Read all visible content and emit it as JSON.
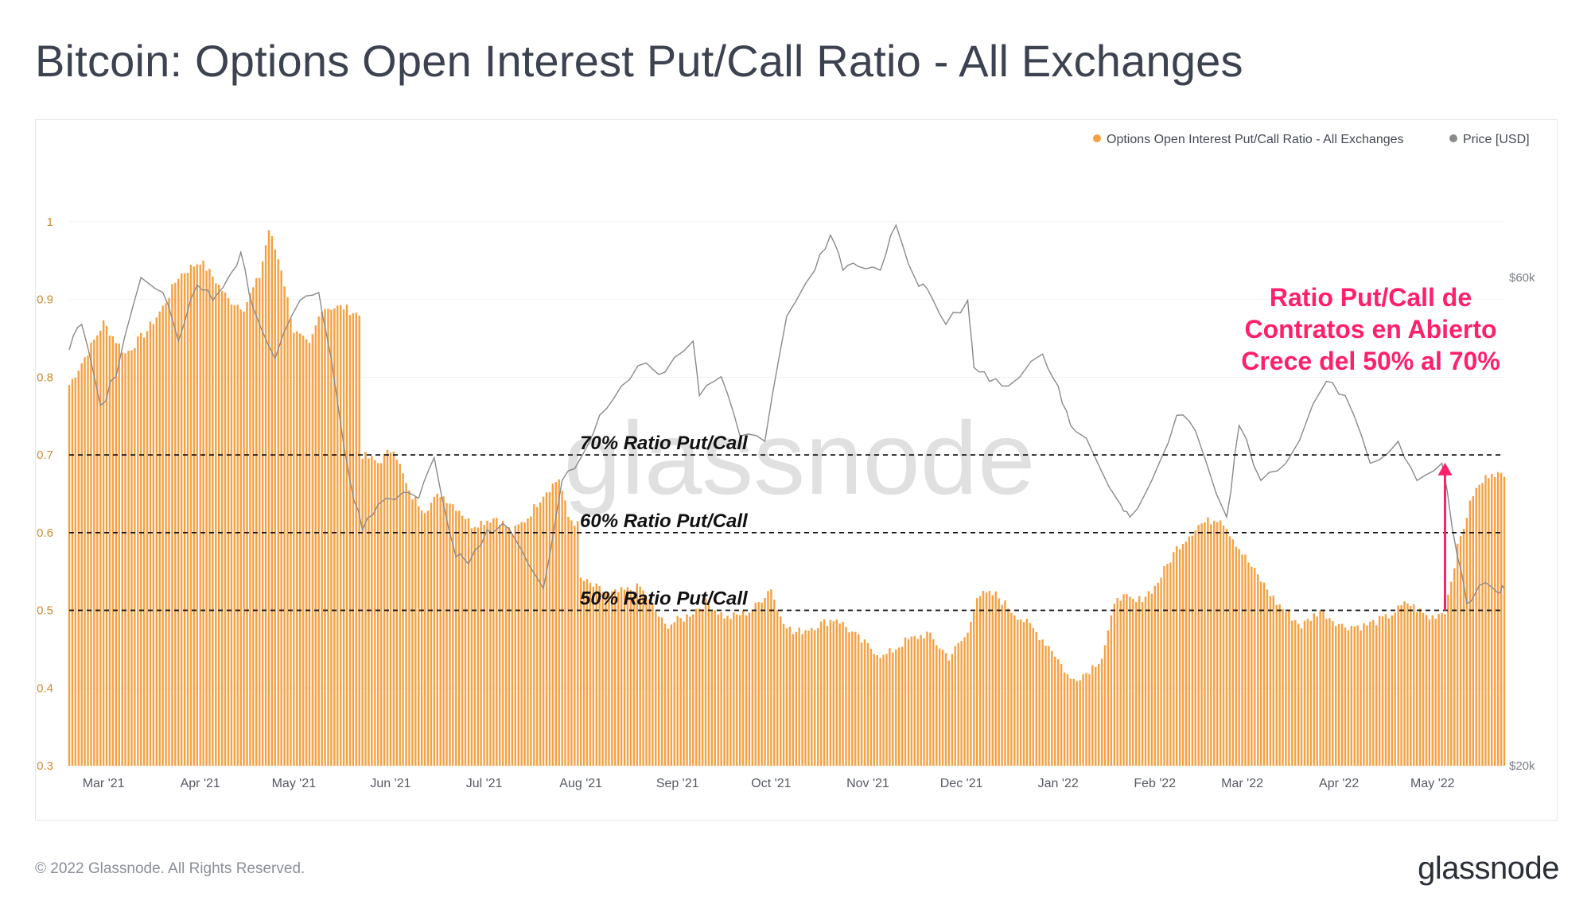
{
  "title": "Bitcoin: Options Open Interest Put/Call Ratio - All Exchanges",
  "footer": {
    "copyright": "© 2022 Glassnode. All Rights Reserved.",
    "logo": "glassnode"
  },
  "watermark": "glassnode",
  "colors": {
    "ratio": "#f5a142",
    "price": "#8a8a8a",
    "annotation": "#ff1f6b",
    "grid": "#eef0f3"
  },
  "chart_data": {
    "type": "bar",
    "legend": {
      "placement": "top-right",
      "entries": [
        {
          "name": "Options Open Interest Put/Call Ratio - All Exchanges",
          "color": "#f5a142"
        },
        {
          "name": "Price [USD]",
          "color": "#8a8a8a"
        }
      ]
    },
    "x_axis": {
      "range": [
        "2021-02-18",
        "2022-05-24"
      ],
      "tick_labels": [
        "Mar '21",
        "Apr '21",
        "May '21",
        "Jun '21",
        "Jul '21",
        "Aug '21",
        "Sep '21",
        "Oct '21",
        "Nov '21",
        "Dec '21",
        "Jan '22",
        "Feb '22",
        "Mar '22",
        "Apr '22",
        "May '22"
      ]
    },
    "y_left": {
      "range": [
        0.3,
        1.0
      ],
      "tick_labels": [
        "0.3",
        "0.4",
        "0.5",
        "0.6",
        "0.7",
        "0.8",
        "0.9",
        "1"
      ]
    },
    "y_right": {
      "scale": "log",
      "tick_labels": [
        "$20k",
        "$60k"
      ]
    },
    "grid": true,
    "ratio_series": {
      "name": "Options Open Interest Put/Call Ratio - All Exchanges",
      "resolution": "daily",
      "points": [
        [
          "2021-02-18",
          0.79
        ],
        [
          "2021-02-25",
          0.84
        ],
        [
          "2021-03-01",
          0.87
        ],
        [
          "2021-03-08",
          0.83
        ],
        [
          "2021-03-15",
          0.86
        ],
        [
          "2021-03-20",
          0.89
        ],
        [
          "2021-03-25",
          0.93
        ],
        [
          "2021-04-01",
          0.95
        ],
        [
          "2021-04-05",
          0.93
        ],
        [
          "2021-04-10",
          0.9
        ],
        [
          "2021-04-15",
          0.89
        ],
        [
          "2021-04-20",
          0.93
        ],
        [
          "2021-04-23",
          0.99
        ],
        [
          "2021-04-27",
          0.94
        ],
        [
          "2021-05-01",
          0.86
        ],
        [
          "2021-05-06",
          0.84
        ],
        [
          "2021-05-10",
          0.89
        ],
        [
          "2021-05-17",
          0.89
        ],
        [
          "2021-05-22",
          0.88
        ],
        [
          "2021-05-23",
          0.7
        ],
        [
          "2021-05-28",
          0.69
        ],
        [
          "2021-06-02",
          0.71
        ],
        [
          "2021-06-07",
          0.65
        ],
        [
          "2021-06-12",
          0.63
        ],
        [
          "2021-06-17",
          0.65
        ],
        [
          "2021-06-23",
          0.63
        ],
        [
          "2021-06-27",
          0.61
        ],
        [
          "2021-07-05",
          0.62
        ],
        [
          "2021-07-10",
          0.6
        ],
        [
          "2021-07-15",
          0.62
        ],
        [
          "2021-07-20",
          0.65
        ],
        [
          "2021-07-25",
          0.67
        ],
        [
          "2021-07-28",
          0.62
        ],
        [
          "2021-07-31",
          0.61
        ],
        [
          "2021-08-01",
          0.54
        ],
        [
          "2021-08-10",
          0.52
        ],
        [
          "2021-08-20",
          0.53
        ],
        [
          "2021-08-28",
          0.48
        ],
        [
          "2021-09-03",
          0.49
        ],
        [
          "2021-09-10",
          0.51
        ],
        [
          "2021-09-17",
          0.49
        ],
        [
          "2021-09-25",
          0.5
        ],
        [
          "2021-10-01",
          0.53
        ],
        [
          "2021-10-03",
          0.5
        ],
        [
          "2021-10-08",
          0.47
        ],
        [
          "2021-10-15",
          0.48
        ],
        [
          "2021-10-22",
          0.49
        ],
        [
          "2021-10-30",
          0.46
        ],
        [
          "2021-11-06",
          0.44
        ],
        [
          "2021-11-13",
          0.46
        ],
        [
          "2021-11-20",
          0.47
        ],
        [
          "2021-11-27",
          0.44
        ],
        [
          "2021-12-03",
          0.47
        ],
        [
          "2021-12-06",
          0.52
        ],
        [
          "2021-12-12",
          0.52
        ],
        [
          "2021-12-17",
          0.5
        ],
        [
          "2021-12-23",
          0.48
        ],
        [
          "2021-12-30",
          0.45
        ],
        [
          "2022-01-05",
          0.41
        ],
        [
          "2022-01-10",
          0.42
        ],
        [
          "2022-01-15",
          0.44
        ],
        [
          "2022-01-20",
          0.52
        ],
        [
          "2022-01-26",
          0.51
        ],
        [
          "2022-02-01",
          0.53
        ],
        [
          "2022-02-08",
          0.58
        ],
        [
          "2022-02-15",
          0.61
        ],
        [
          "2022-02-22",
          0.62
        ],
        [
          "2022-02-28",
          0.58
        ],
        [
          "2022-03-05",
          0.55
        ],
        [
          "2022-03-12",
          0.51
        ],
        [
          "2022-03-20",
          0.48
        ],
        [
          "2022-03-26",
          0.5
        ],
        [
          "2022-04-02",
          0.48
        ],
        [
          "2022-04-09",
          0.48
        ],
        [
          "2022-04-16",
          0.49
        ],
        [
          "2022-04-23",
          0.51
        ],
        [
          "2022-04-30",
          0.49
        ],
        [
          "2022-05-05",
          0.5
        ],
        [
          "2022-05-09",
          0.58
        ],
        [
          "2022-05-14",
          0.65
        ],
        [
          "2022-05-20",
          0.68
        ],
        [
          "2022-05-24",
          0.67
        ]
      ]
    },
    "price_series": {
      "name": "Price [USD]",
      "points": [
        [
          "2021-02-18",
          51000
        ],
        [
          "2021-02-22",
          54000
        ],
        [
          "2021-02-28",
          45000
        ],
        [
          "2021-03-05",
          48000
        ],
        [
          "2021-03-13",
          60000
        ],
        [
          "2021-03-20",
          58000
        ],
        [
          "2021-03-25",
          52000
        ],
        [
          "2021-03-31",
          59000
        ],
        [
          "2021-04-05",
          57000
        ],
        [
          "2021-04-10",
          60000
        ],
        [
          "2021-04-14",
          63500
        ],
        [
          "2021-04-18",
          56000
        ],
        [
          "2021-04-25",
          50000
        ],
        [
          "2021-05-03",
          57000
        ],
        [
          "2021-05-09",
          58000
        ],
        [
          "2021-05-13",
          50000
        ],
        [
          "2021-05-19",
          38000
        ],
        [
          "2021-05-23",
          34000
        ],
        [
          "2021-05-28",
          36000
        ],
        [
          "2021-06-05",
          37000
        ],
        [
          "2021-06-10",
          36500
        ],
        [
          "2021-06-15",
          40000
        ],
        [
          "2021-06-22",
          32000
        ],
        [
          "2021-06-26",
          31500
        ],
        [
          "2021-07-02",
          34000
        ],
        [
          "2021-07-07",
          34500
        ],
        [
          "2021-07-13",
          32500
        ],
        [
          "2021-07-20",
          29800
        ],
        [
          "2021-07-26",
          38000
        ],
        [
          "2021-08-01",
          40000
        ],
        [
          "2021-08-07",
          44000
        ],
        [
          "2021-08-14",
          47000
        ],
        [
          "2021-08-22",
          49500
        ],
        [
          "2021-08-28",
          48500
        ],
        [
          "2021-09-06",
          52000
        ],
        [
          "2021-09-08",
          46000
        ],
        [
          "2021-09-15",
          48000
        ],
        [
          "2021-09-21",
          42000
        ],
        [
          "2021-09-29",
          41500
        ],
        [
          "2021-10-06",
          55000
        ],
        [
          "2021-10-15",
          61000
        ],
        [
          "2021-10-20",
          66000
        ],
        [
          "2021-10-24",
          61000
        ],
        [
          "2021-10-29",
          61500
        ],
        [
          "2021-11-05",
          61000
        ],
        [
          "2021-11-10",
          67500
        ],
        [
          "2021-11-16",
          60000
        ],
        [
          "2021-11-20",
          58500
        ],
        [
          "2021-11-26",
          54000
        ],
        [
          "2021-12-03",
          57000
        ],
        [
          "2021-12-05",
          49000
        ],
        [
          "2021-12-10",
          47500
        ],
        [
          "2021-12-16",
          47000
        ],
        [
          "2021-12-27",
          50500
        ],
        [
          "2022-01-01",
          47000
        ],
        [
          "2022-01-05",
          43000
        ],
        [
          "2022-01-10",
          41800
        ],
        [
          "2022-01-21",
          36000
        ],
        [
          "2022-01-24",
          35000
        ],
        [
          "2022-01-31",
          38000
        ],
        [
          "2022-02-08",
          44000
        ],
        [
          "2022-02-14",
          42500
        ],
        [
          "2022-02-24",
          35000
        ],
        [
          "2022-02-28",
          43000
        ],
        [
          "2022-03-07",
          38000
        ],
        [
          "2022-03-15",
          39500
        ],
        [
          "2022-03-28",
          47500
        ],
        [
          "2022-04-03",
          46000
        ],
        [
          "2022-04-11",
          39500
        ],
        [
          "2022-04-20",
          41500
        ],
        [
          "2022-04-26",
          38000
        ],
        [
          "2022-05-04",
          39500
        ],
        [
          "2022-05-09",
          32000
        ],
        [
          "2022-05-12",
          28800
        ],
        [
          "2022-05-16",
          30000
        ],
        [
          "2022-05-22",
          29500
        ],
        [
          "2022-05-24",
          29800
        ]
      ]
    },
    "reference_lines": [
      {
        "value": 0.7,
        "label": "70% Ratio Put/Call"
      },
      {
        "value": 0.6,
        "label": "60% Ratio Put/Call"
      },
      {
        "value": 0.5,
        "label": "50% Ratio Put/Call"
      }
    ],
    "annotation": {
      "lines": [
        "Ratio Put/Call de",
        "Contratos en Abierto",
        "Crece del 50% al 70%"
      ],
      "arrow": {
        "x": "2022-05-05",
        "from": 0.5,
        "to": 0.69
      }
    }
  }
}
